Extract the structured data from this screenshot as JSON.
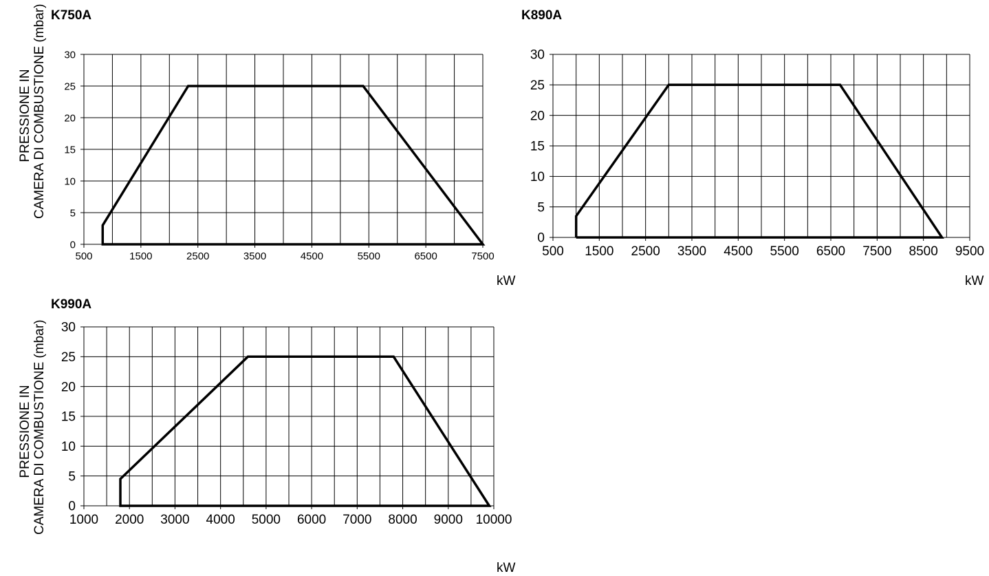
{
  "chart_data": [
    {
      "type": "line",
      "title": "K750A",
      "ylabel": "PRESSIONE IN CAMERA DI COMBUSTIONE (mbar)",
      "ylabel_lines": [
        "PRESSIONE IN",
        "CAMERA DI COMBUSTIONE (mbar)"
      ],
      "xlabel": "kW",
      "xlim": [
        500,
        7500
      ],
      "ylim": [
        0,
        30
      ],
      "x_ticks": [
        500,
        1500,
        2500,
        3500,
        4500,
        5500,
        6500,
        7500
      ],
      "y_ticks": [
        0,
        5,
        10,
        15,
        20,
        25,
        30
      ],
      "x_grid_step": 500,
      "y_grid_step": 5,
      "grid": true,
      "series": [
        {
          "x": [
            950,
            830,
            830,
            2330,
            5400,
            7500,
            950
          ],
          "y": [
            0,
            0,
            3,
            25,
            25,
            0,
            0
          ]
        }
      ]
    },
    {
      "type": "line",
      "title": "K890A",
      "ylabel": "",
      "xlabel": "kW",
      "xlim": [
        500,
        9500
      ],
      "ylim": [
        0,
        30
      ],
      "x_ticks": [
        500,
        1500,
        2500,
        3500,
        4500,
        5500,
        6500,
        7500,
        8500,
        9500
      ],
      "y_ticks": [
        0,
        5,
        10,
        15,
        20,
        25,
        30
      ],
      "x_grid_step": 500,
      "y_grid_step": 5,
      "grid": true,
      "series": [
        {
          "x": [
            1000,
            1000,
            3000,
            6700,
            8900,
            1000
          ],
          "y": [
            0,
            3.5,
            25,
            25,
            0,
            0
          ]
        }
      ]
    },
    {
      "type": "line",
      "title": "K990A",
      "ylabel": "PRESSIONE IN CAMERA DI COMBUSTIONE (mbar)",
      "ylabel_lines": [
        "PRESSIONE IN",
        "CAMERA DI COMBUSTIONE (mbar)"
      ],
      "xlabel": "kW",
      "xlim": [
        1000,
        10000
      ],
      "ylim": [
        0,
        30
      ],
      "x_ticks": [
        1000,
        2000,
        3000,
        4000,
        5000,
        6000,
        7000,
        8000,
        9000,
        10000
      ],
      "y_ticks": [
        0,
        5,
        10,
        15,
        20,
        25,
        30
      ],
      "x_grid_step": 500,
      "y_grid_step": 5,
      "grid": true,
      "series": [
        {
          "x": [
            1850,
            1800,
            1800,
            4600,
            7800,
            9900,
            1850
          ],
          "y": [
            0,
            0,
            4.5,
            25,
            25,
            0,
            0
          ]
        }
      ]
    }
  ]
}
